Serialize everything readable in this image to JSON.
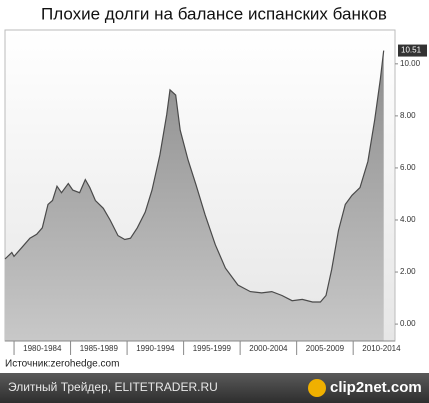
{
  "chart_data": {
    "type": "area",
    "title": "Плохие долги на балансе испанских банков",
    "source": "Источник:zerohedge.com",
    "x": [
      1979.2,
      1979.8,
      1980,
      1980.7,
      1981.4,
      1982,
      1982.5,
      1983,
      1983.4,
      1983.8,
      1984.2,
      1984.8,
      1985.2,
      1985.8,
      1986.3,
      1986.7,
      1987.2,
      1987.9,
      1988.5,
      1989.2,
      1989.8,
      1990.3,
      1990.9,
      1991.6,
      1992.2,
      1992.9,
      1993.5,
      1993.8,
      1994.3,
      1994.7,
      1995.4,
      1996.1,
      1996.9,
      1997.8,
      1998.7,
      1999.8,
      2000.9,
      2001.9,
      2002.8,
      2003.7,
      2004.6,
      2005.5,
      2006.4,
      2007.1,
      2007.6,
      2008.1,
      2008.7,
      2009.3,
      2009.9,
      2010.6,
      2011.3,
      2011.9,
      2012.4,
      2012.7
    ],
    "values": [
      2.5,
      2.75,
      2.6,
      2.95,
      3.3,
      3.45,
      3.7,
      4.6,
      4.75,
      5.3,
      5.05,
      5.4,
      5.15,
      5.05,
      5.55,
      5.25,
      4.75,
      4.45,
      4.0,
      3.4,
      3.25,
      3.3,
      3.7,
      4.3,
      5.15,
      6.5,
      8.05,
      9.0,
      8.8,
      7.45,
      6.3,
      5.35,
      4.2,
      3.05,
      2.15,
      1.5,
      1.25,
      1.2,
      1.25,
      1.1,
      0.9,
      0.95,
      0.85,
      0.85,
      1.1,
      2.1,
      3.6,
      4.6,
      4.95,
      5.25,
      6.25,
      7.85,
      9.4,
      10.51
    ],
    "color": "#9a9a9a",
    "line_color": "#4a4a4a",
    "xlim": [
      1979.2,
      2013.7
    ],
    "xticks": [
      {
        "value": 1980,
        "label": "1980-1984"
      },
      {
        "value": 1985,
        "label": "1985-1989"
      },
      {
        "value": 1990,
        "label": "1990-1994"
      },
      {
        "value": 1995,
        "label": "1995-1999"
      },
      {
        "value": 2000,
        "label": "2000-2004"
      },
      {
        "value": 2005,
        "label": "2005-2009"
      },
      {
        "value": 2010,
        "label": "2010-2014"
      }
    ],
    "ylim": [
      -0.65,
      11.3
    ],
    "yticks": [
      {
        "value": 0,
        "label": "0.00"
      },
      {
        "value": 2,
        "label": "2.00"
      },
      {
        "value": 4,
        "label": "4.00"
      },
      {
        "value": 6,
        "label": "6.00"
      },
      {
        "value": 8,
        "label": "8.00"
      },
      {
        "value": 10,
        "label": "10.00"
      }
    ]
  },
  "footer": {
    "credit": "Элитный Трейдер, ELITETRADER.RU",
    "logo": "clip2net.com"
  }
}
